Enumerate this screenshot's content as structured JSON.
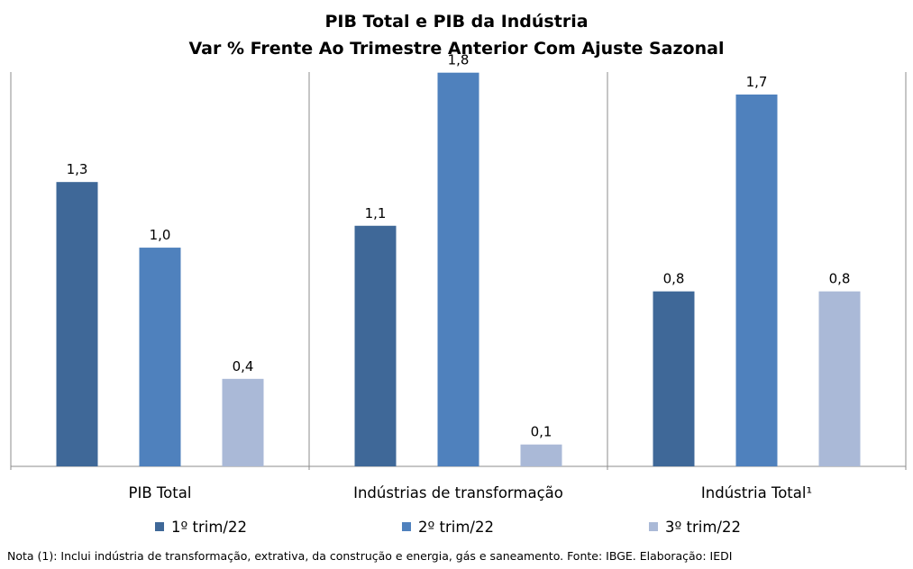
{
  "chart_data": {
    "type": "bar",
    "title": "PIB Total e PIB da Indústria",
    "subtitle": "Var % Frente Ao Trimestre Anterior Com Ajuste Sazonal",
    "categories": [
      "PIB Total",
      "Indústrias de transformação",
      "Indústria Total¹"
    ],
    "series": [
      {
        "name": "1º trim/22",
        "color": "#3F6898",
        "values": [
          1.3,
          1.1,
          0.8
        ],
        "labels": [
          "1,3",
          "1,1",
          "0,8"
        ]
      },
      {
        "name": "2º trim/22",
        "color": "#4F81BD",
        "values": [
          1.0,
          1.8,
          1.7
        ],
        "labels": [
          "1,0",
          "1,8",
          "1,7"
        ]
      },
      {
        "name": "3º trim/22",
        "color": "#AAB9D7",
        "values": [
          0.4,
          0.1,
          0.8
        ],
        "labels": [
          "0,4",
          "0,1",
          "0,8"
        ]
      }
    ],
    "ylim": [
      0,
      2.0
    ],
    "grid": false,
    "legend_position": "bottom"
  },
  "note": "Nota (1): Inclui indústria de transformação, extrativa, da construção e energia, gás e saneamento. Fonte: IBGE. Elaboração: IEDI"
}
